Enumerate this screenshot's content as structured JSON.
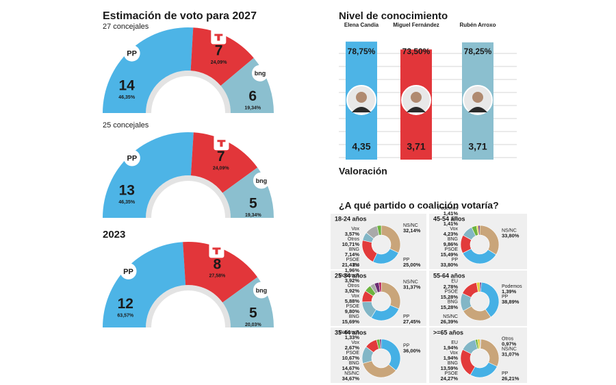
{
  "chart_data": [
    {
      "type": "semicircle",
      "title": "Estimación de voto para 2027",
      "subtitle": "27 concejales",
      "categories": [
        "PP",
        null,
        "bng"
      ],
      "colors": [
        "#4db4e6",
        "#e2363a",
        "#8bbfcf"
      ],
      "values": [
        14,
        7,
        6
      ],
      "shares": [
        46.35,
        24.09,
        19.34
      ],
      "share_labels": [
        "46,35%",
        "24,09%",
        "19,34%"
      ]
    },
    {
      "type": "semicircle",
      "subtitle": "25 concejales",
      "categories": [
        "PP",
        null,
        "bng"
      ],
      "colors": [
        "#4db4e6",
        "#e2363a",
        "#8bbfcf"
      ],
      "values": [
        13,
        7,
        5
      ],
      "shares": [
        46.35,
        24.09,
        19.34
      ],
      "share_labels": [
        "46,35%",
        "24,09%",
        "19,34%"
      ]
    },
    {
      "type": "semicircle",
      "title": "2023",
      "categories": [
        "PP",
        null,
        "bng"
      ],
      "colors": [
        "#4db4e6",
        "#e2363a",
        "#8bbfcf"
      ],
      "values": [
        12,
        8,
        5
      ],
      "shares": [
        63.57,
        27.58,
        20.03
      ],
      "share_labels": [
        "63,57%",
        "27,58%",
        "20,03%"
      ]
    },
    {
      "type": "bar",
      "title": "Nivel de conocimiento",
      "categories": [
        "Elena Candia",
        "Miguel Fernández",
        "Rubén Arroxo"
      ],
      "colors": [
        "#4db4e6",
        "#e2363a",
        "#8bbfcf"
      ],
      "ylim": [
        0,
        80
      ],
      "values": [
        78.75,
        73.5,
        78.25
      ],
      "value_labels": [
        "78,75%",
        "73,50%",
        "78,25%"
      ],
      "rating": {
        "title": "Valoración",
        "values": [
          4.35,
          3.71,
          3.71
        ],
        "value_labels": [
          "4,35",
          "3,71",
          "3,71"
        ]
      }
    },
    {
      "type": "donut",
      "title": "¿A qué partido o coalición votaría?",
      "groups": [
        {
          "name": "18-24 años",
          "categories": [
            "NS/NC",
            "PP",
            "PSOE",
            "BNG",
            "Otros",
            "Vox"
          ],
          "colors": [
            "#c9a57a",
            "#45b0e5",
            "#e23b3b",
            "#82b6c6",
            "#a9a9a9",
            "#6cb33f"
          ],
          "values": [
            32.14,
            25.0,
            21.43,
            7.14,
            10.71,
            3.57
          ],
          "value_labels": [
            "32,14%",
            "25,00%",
            "21,43%",
            "7,14%",
            "10,71%",
            "3,57%"
          ]
        },
        {
          "name": "45-54 años",
          "categories": [
            "NS/NC",
            "PP",
            "PSOE",
            "BNG",
            "Vox",
            "EU",
            "Podemos"
          ],
          "colors": [
            "#c9a57a",
            "#45b0e5",
            "#e23b3b",
            "#82b6c6",
            "#6cb33f",
            "#e3cf3a",
            "#6b2c73"
          ],
          "values": [
            33.8,
            33.8,
            15.49,
            9.86,
            4.23,
            1.41,
            1.41
          ],
          "value_labels": [
            "33,80%",
            "33,80%",
            "15,49%",
            "9,86%",
            "4,23%",
            "1,41%",
            "1,41%"
          ]
        },
        {
          "name": "25-34 años",
          "categories": [
            "NS/NC",
            "PP",
            "BNG",
            "PSOE",
            "Vox",
            "Otros",
            "Podemos",
            "EU"
          ],
          "colors": [
            "#c9a57a",
            "#45b0e5",
            "#82b6c6",
            "#e23b3b",
            "#6cb33f",
            "#a9a9a9",
            "#6b2c73",
            "#b3124f"
          ],
          "values": [
            31.37,
            27.45,
            15.69,
            9.8,
            5.88,
            3.92,
            3.92,
            1.96
          ],
          "value_labels": [
            "31,37%",
            "27,45%",
            "15,69%",
            "9,80%",
            "5,88%",
            "3,92%",
            "3,92%",
            "1,96%"
          ]
        },
        {
          "name": "55-64 años",
          "categories": [
            "Podemos",
            "PP",
            "NS/NC",
            "BNG",
            "PSOE",
            "EU"
          ],
          "colors": [
            "#6b2c73",
            "#45b0e5",
            "#c9a57a",
            "#82b6c6",
            "#e23b3b",
            "#e3cf3a"
          ],
          "values": [
            1.39,
            38.89,
            26.39,
            15.28,
            15.28,
            2.78
          ],
          "value_labels": [
            "1,39%",
            "38,89%",
            "26,39%",
            "15,28%",
            "15,28%",
            "2,78%"
          ]
        },
        {
          "name": "35-44 años",
          "categories": [
            "PP",
            "NS/NC",
            "BNG",
            "PSOE",
            "Vox",
            "Podemos"
          ],
          "colors": [
            "#45b0e5",
            "#c9a57a",
            "#82b6c6",
            "#e23b3b",
            "#6cb33f",
            "#6b2c73"
          ],
          "values": [
            36.0,
            34.67,
            14.67,
            10.67,
            2.67,
            1.33
          ],
          "value_labels": [
            "36,00%",
            "34,67%",
            "14,67%",
            "10,67%",
            "2,67%",
            "1,33%"
          ]
        },
        {
          "name": ">=65 años",
          "categories": [
            "Otros",
            "NS/NC",
            "PP",
            "PSOE",
            "BNG",
            "Vox",
            "EU"
          ],
          "colors": [
            "#a9a9a9",
            "#c9a57a",
            "#45b0e5",
            "#e23b3b",
            "#82b6c6",
            "#6cb33f",
            "#e3cf3a"
          ],
          "values": [
            0.97,
            31.07,
            26.21,
            24.27,
            13.59,
            1.94,
            1.94
          ],
          "value_labels": [
            "0,97%",
            "31,07%",
            "26,21%",
            "24,27%",
            "13,59%",
            "1,94%",
            "1,94%"
          ]
        }
      ]
    }
  ]
}
